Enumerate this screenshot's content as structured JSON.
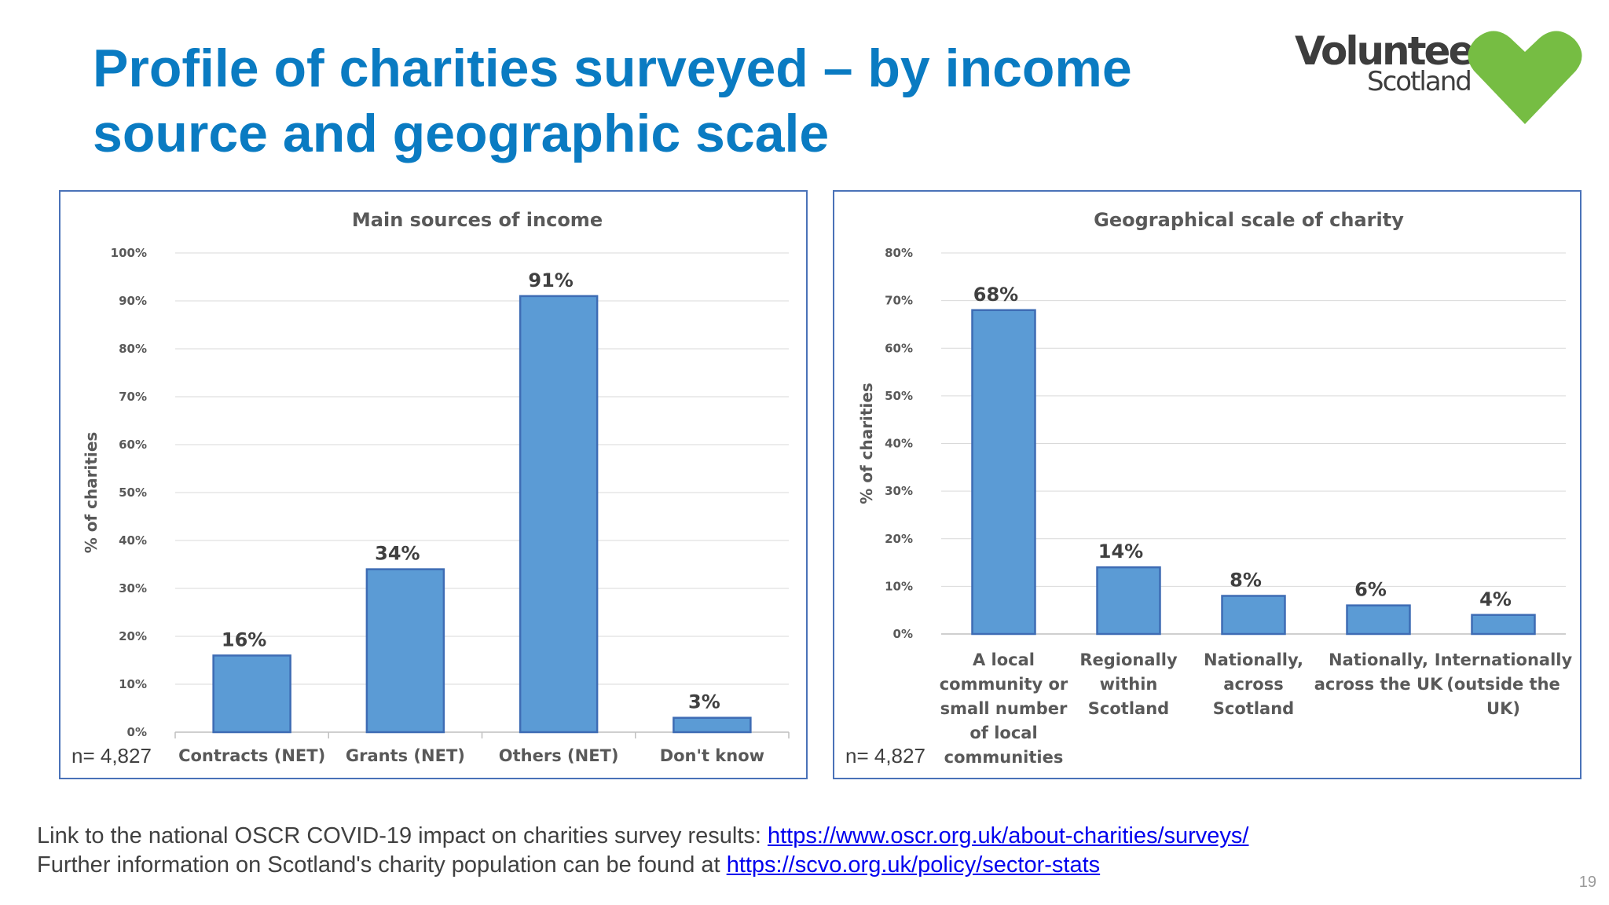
{
  "title": "Profile of charities surveyed – by income source and geographic scale",
  "logo": {
    "line1": "Volunteer",
    "line2": "Scotland",
    "heart_color": "#76bd43"
  },
  "colors": {
    "title": "#0a7bc2",
    "bar": "#5b9bd5",
    "bar_border": "#3e6cb4",
    "panel_border": "#4a72b8"
  },
  "chart_data": [
    {
      "type": "bar",
      "title": "Main sources of income",
      "ylabel": "% of charities",
      "categories": [
        [
          "Contracts (NET)"
        ],
        [
          "Grants (NET)"
        ],
        [
          "Others (NET)"
        ],
        [
          "Don't know"
        ]
      ],
      "values": [
        16,
        34,
        91,
        3
      ],
      "value_labels": [
        "16%",
        "34%",
        "91%",
        "3%"
      ],
      "ylim": [
        0,
        100
      ],
      "yticks": [
        0,
        10,
        20,
        30,
        40,
        50,
        60,
        70,
        80,
        90,
        100
      ],
      "ytick_labels": [
        "0%",
        "10%",
        "20%",
        "30%",
        "40%",
        "50%",
        "60%",
        "70%",
        "80%",
        "90%",
        "100%"
      ],
      "grid": true,
      "note": "n= 4,827"
    },
    {
      "type": "bar",
      "title": "Geographical scale of charity",
      "ylabel": "% of charities",
      "categories": [
        [
          "A local",
          "community or",
          "small number",
          "of local",
          "communities"
        ],
        [
          "Regionally",
          "within",
          "Scotland"
        ],
        [
          "Nationally,",
          "across",
          "Scotland"
        ],
        [
          "Nationally,",
          "across the UK"
        ],
        [
          "Internationally",
          "(outside the",
          "UK)"
        ]
      ],
      "values": [
        68,
        14,
        8,
        6,
        4
      ],
      "value_labels": [
        "68%",
        "14%",
        "8%",
        "6%",
        "4%"
      ],
      "ylim": [
        0,
        80
      ],
      "yticks": [
        0,
        10,
        20,
        30,
        40,
        50,
        60,
        70,
        80
      ],
      "ytick_labels": [
        "0%",
        "10%",
        "20%",
        "30%",
        "40%",
        "50%",
        "60%",
        "70%",
        "80%"
      ],
      "grid": true,
      "note": "n= 4,827"
    }
  ],
  "footer": {
    "line1_text": "Link to the national OSCR COVID-19 impact on charities survey results:  ",
    "line1_link": "https://www.oscr.org.uk/about-charities/surveys/",
    "line2_text": "Further information on Scotland's charity population can be found at ",
    "line2_link": "https://scvo.org.uk/policy/sector-stats"
  },
  "page_number": "19"
}
